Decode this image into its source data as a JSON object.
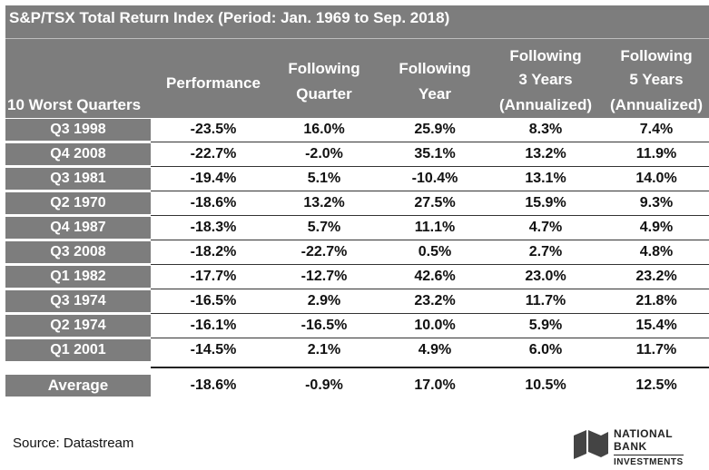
{
  "chart_data": {
    "type": "table",
    "title": "S&P/TSX Total Return Index (Period: Jan. 1969 to Sep. 2018)",
    "columns": [
      "10 Worst Quarters",
      "Performance",
      "Following Quarter",
      "Following Year",
      "Following 3 Years (Annualized)",
      "Following 5 Years (Annualized)"
    ],
    "header_lines": [
      [
        "10 Worst Quarters"
      ],
      [
        "Performance"
      ],
      [
        "Following",
        "Quarter"
      ],
      [
        "Following",
        "Year"
      ],
      [
        "Following",
        "3 Years",
        "(Annualized)"
      ],
      [
        "Following",
        "5 Years",
        "(Annualized)"
      ]
    ],
    "rows": [
      [
        "Q3 1998",
        "-23.5%",
        "16.0%",
        "25.9%",
        "8.3%",
        "7.4%"
      ],
      [
        "Q4 2008",
        "-22.7%",
        "-2.0%",
        "35.1%",
        "13.2%",
        "11.9%"
      ],
      [
        "Q3 1981",
        "-19.4%",
        "5.1%",
        "-10.4%",
        "13.1%",
        "14.0%"
      ],
      [
        "Q2 1970",
        "-18.6%",
        "13.2%",
        "27.5%",
        "15.9%",
        "9.3%"
      ],
      [
        "Q4 1987",
        "-18.3%",
        "5.7%",
        "11.1%",
        "4.7%",
        "4.9%"
      ],
      [
        "Q3 2008",
        "-18.2%",
        "-22.7%",
        "0.5%",
        "2.7%",
        "4.8%"
      ],
      [
        "Q1 1982",
        "-17.7%",
        "-12.7%",
        "42.6%",
        "23.0%",
        "23.2%"
      ],
      [
        "Q3 1974",
        "-16.5%",
        "2.9%",
        "23.2%",
        "11.7%",
        "21.8%"
      ],
      [
        "Q2 1974",
        "-16.1%",
        "-16.5%",
        "10.0%",
        "5.9%",
        "15.4%"
      ],
      [
        "Q1 2001",
        "-14.5%",
        "2.1%",
        "4.9%",
        "6.0%",
        "11.7%"
      ]
    ],
    "average": [
      "Average",
      "-18.6%",
      "-0.9%",
      "17.0%",
      "10.5%",
      "12.5%"
    ]
  },
  "source": "Source: Datastream",
  "logo": {
    "line1": "NATIONAL",
    "line2": "BANK",
    "line3": "INVESTMENTS"
  },
  "colors": {
    "header_bg": "#7d7d7d",
    "header_text": "#ffffff",
    "cell_text": "#111111"
  }
}
